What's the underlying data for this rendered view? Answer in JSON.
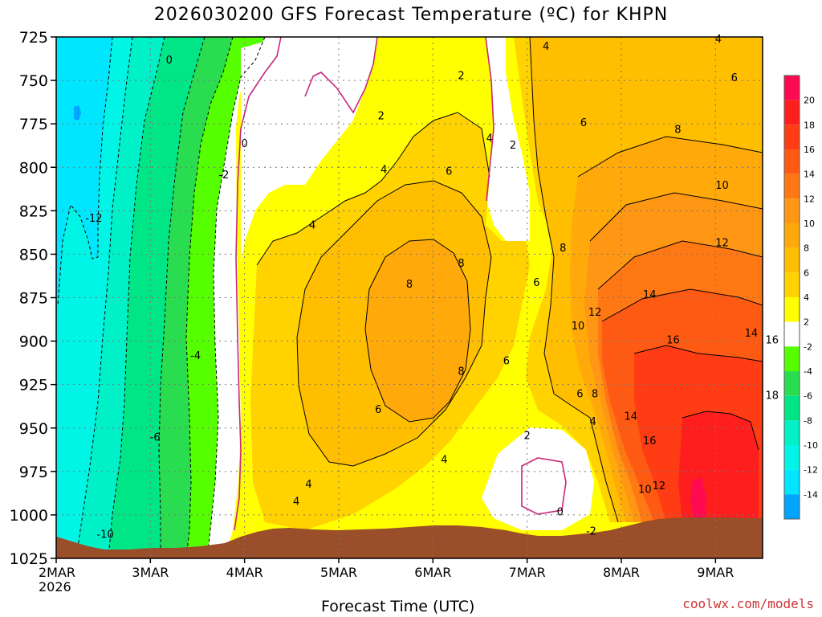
{
  "chart_data": {
    "type": "heatmap",
    "title": "2026030200 GFS Forecast Temperature (ºC) for KHPN",
    "xlabel": "Forecast Time (UTC)",
    "credit": "coolwx.com/models",
    "x_ticks": [
      "2MAR",
      "3MAR",
      "4MAR",
      "5MAR",
      "6MAR",
      "7MAR",
      "8MAR",
      "9MAR"
    ],
    "x_year": "2026",
    "xlim_days": [
      0,
      7.5
    ],
    "y_ticks": [
      "725",
      "750",
      "775",
      "800",
      "825",
      "850",
      "875",
      "900",
      "925",
      "950",
      "975",
      "1000",
      "1025"
    ],
    "ylim": [
      725,
      1025
    ],
    "y_inverted": true,
    "colorbar": {
      "labels": [
        "20",
        "18",
        "16",
        "14",
        "12",
        "10",
        "8",
        "6",
        "4",
        "2",
        "-2",
        "-4",
        "-6",
        "-8",
        "-10",
        "-12",
        "-14"
      ],
      "bands": [
        {
          "min": 20,
          "max": 22,
          "color": "#ff0a50"
        },
        {
          "min": 18,
          "max": 20,
          "color": "#ff1e1e"
        },
        {
          "min": 16,
          "max": 18,
          "color": "#ff3c14"
        },
        {
          "min": 14,
          "max": 16,
          "color": "#ff5a14"
        },
        {
          "min": 12,
          "max": 14,
          "color": "#ff7814"
        },
        {
          "min": 10,
          "max": 12,
          "color": "#ff9614"
        },
        {
          "min": 8,
          "max": 10,
          "color": "#ffaa0a"
        },
        {
          "min": 6,
          "max": 8,
          "color": "#ffbe00"
        },
        {
          "min": 4,
          "max": 6,
          "color": "#ffd200"
        },
        {
          "min": 2,
          "max": 4,
          "color": "#ffff00"
        },
        {
          "min": -2,
          "max": 2,
          "color": "#ffffff"
        },
        {
          "min": -4,
          "max": -2,
          "color": "#55ff00"
        },
        {
          "min": -6,
          "max": -4,
          "color": "#2adc50"
        },
        {
          "min": -8,
          "max": -6,
          "color": "#00e687"
        },
        {
          "min": -10,
          "max": -8,
          "color": "#00f0c8"
        },
        {
          "min": -12,
          "max": -10,
          "color": "#00f5e6"
        },
        {
          "min": -14,
          "max": -12,
          "color": "#00e6ff"
        },
        {
          "min": -16,
          "max": -14,
          "color": "#00a5ff"
        }
      ]
    },
    "terrain_color": "#9b4e2a",
    "contour_labels": [
      {
        "text": "0",
        "x": 1.2,
        "y": 738
      },
      {
        "text": "0",
        "x": 2.0,
        "y": 786
      },
      {
        "text": "0",
        "x": 5.35,
        "y": 998
      },
      {
        "text": "-2",
        "x": 1.78,
        "y": 804
      },
      {
        "text": "-4",
        "x": 1.48,
        "y": 908
      },
      {
        "text": "-6",
        "x": 1.05,
        "y": 955
      },
      {
        "text": "-10",
        "x": 0.52,
        "y": 1011
      },
      {
        "text": "-12",
        "x": 0.4,
        "y": 829
      },
      {
        "text": "2",
        "x": 4.3,
        "y": 747
      },
      {
        "text": "2",
        "x": 3.45,
        "y": 770
      },
      {
        "text": "2",
        "x": 4.85,
        "y": 787
      },
      {
        "text": "2",
        "x": 5.0,
        "y": 954
      },
      {
        "text": "-2",
        "x": 5.68,
        "y": 1009
      },
      {
        "text": "4",
        "x": 5.2,
        "y": 730
      },
      {
        "text": "4",
        "x": 7.03,
        "y": 726
      },
      {
        "text": "4",
        "x": 4.6,
        "y": 783
      },
      {
        "text": "4",
        "x": 3.48,
        "y": 801
      },
      {
        "text": "4",
        "x": 2.72,
        "y": 833
      },
      {
        "text": "4",
        "x": 4.12,
        "y": 968
      },
      {
        "text": "4",
        "x": 2.68,
        "y": 982
      },
      {
        "text": "4",
        "x": 2.55,
        "y": 992
      },
      {
        "text": "4",
        "x": 5.7,
        "y": 946
      },
      {
        "text": "6",
        "x": 7.2,
        "y": 748
      },
      {
        "text": "6",
        "x": 5.6,
        "y": 774
      },
      {
        "text": "6",
        "x": 4.17,
        "y": 802
      },
      {
        "text": "6",
        "x": 4.78,
        "y": 911
      },
      {
        "text": "6",
        "x": 3.42,
        "y": 939
      },
      {
        "text": "6",
        "x": 5.1,
        "y": 866
      },
      {
        "text": "6",
        "x": 5.56,
        "y": 930
      },
      {
        "text": "8",
        "x": 6.6,
        "y": 778
      },
      {
        "text": "8",
        "x": 3.75,
        "y": 867
      },
      {
        "text": "8",
        "x": 4.3,
        "y": 855
      },
      {
        "text": "8",
        "x": 4.3,
        "y": 917
      },
      {
        "text": "8",
        "x": 5.38,
        "y": 846
      },
      {
        "text": "8",
        "x": 5.72,
        "y": 930
      },
      {
        "text": "10",
        "x": 7.07,
        "y": 810
      },
      {
        "text": "10",
        "x": 5.54,
        "y": 891
      },
      {
        "text": "10",
        "x": 6.25,
        "y": 985
      },
      {
        "text": "12",
        "x": 7.07,
        "y": 843
      },
      {
        "text": "12",
        "x": 5.72,
        "y": 883
      },
      {
        "text": "12",
        "x": 6.4,
        "y": 983
      },
      {
        "text": "14",
        "x": 6.3,
        "y": 873
      },
      {
        "text": "14",
        "x": 6.1,
        "y": 943
      },
      {
        "text": "14",
        "x": 7.38,
        "y": 895
      },
      {
        "text": "16",
        "x": 6.55,
        "y": 899
      },
      {
        "text": "16",
        "x": 6.3,
        "y": 957
      },
      {
        "text": "16",
        "x": 7.6,
        "y": 899
      },
      {
        "text": "18",
        "x": 7.6,
        "y": 931
      }
    ]
  }
}
